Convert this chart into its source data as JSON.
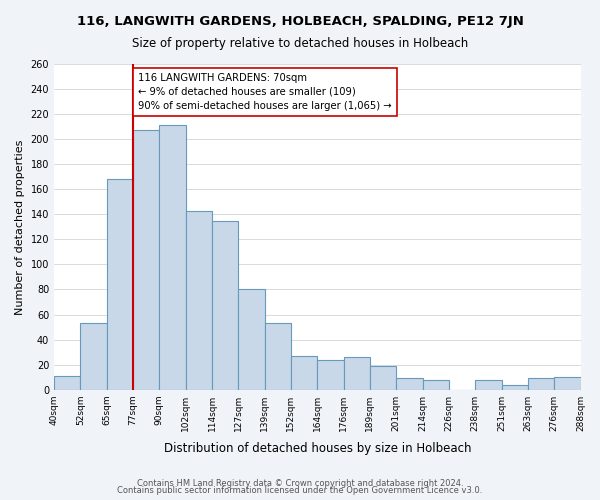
{
  "title": "116, LANGWITH GARDENS, HOLBEACH, SPALDING, PE12 7JN",
  "subtitle": "Size of property relative to detached houses in Holbeach",
  "xlabel": "Distribution of detached houses by size in Holbeach",
  "ylabel": "Number of detached properties",
  "bin_labels": [
    "40sqm",
    "52sqm",
    "65sqm",
    "77sqm",
    "90sqm",
    "102sqm",
    "114sqm",
    "127sqm",
    "139sqm",
    "152sqm",
    "164sqm",
    "176sqm",
    "189sqm",
    "201sqm",
    "214sqm",
    "226sqm",
    "238sqm",
    "251sqm",
    "263sqm",
    "276sqm",
    "288sqm"
  ],
  "bar_heights": [
    11,
    53,
    168,
    207,
    211,
    143,
    135,
    80,
    53,
    27,
    24,
    26,
    19,
    9,
    8,
    0,
    8,
    4,
    9,
    10
  ],
  "bar_color": "#c8d8e8",
  "bar_edge_color": "#6699bb",
  "vline_color": "#cc0000",
  "annotation_text": "116 LANGWITH GARDENS: 70sqm\n← 9% of detached houses are smaller (109)\n90% of semi-detached houses are larger (1,065) →",
  "annotation_box_edge": "#cc0000",
  "ylim": [
    0,
    260
  ],
  "yticks": [
    0,
    20,
    40,
    60,
    80,
    100,
    120,
    140,
    160,
    180,
    200,
    220,
    240,
    260
  ],
  "footer1": "Contains HM Land Registry data © Crown copyright and database right 2024.",
  "footer2": "Contains public sector information licensed under the Open Government Licence v3.0.",
  "background_color": "#f0f4f8",
  "plot_bg_color": "#ffffff"
}
